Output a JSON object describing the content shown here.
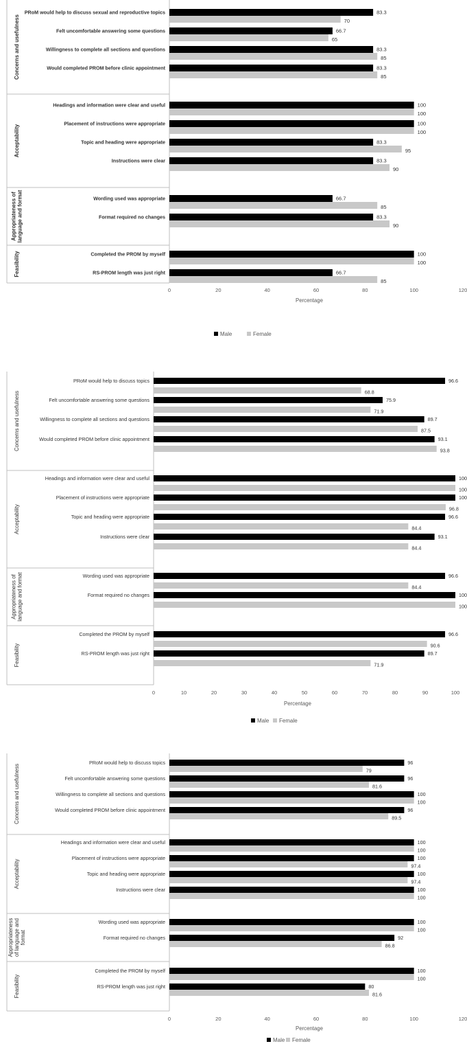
{
  "legend": {
    "male": "Male",
    "female": "Female"
  },
  "colors": {
    "male": "#000000",
    "female": "#c8c8c8",
    "axis": "#bfbfbf",
    "text": "#333333"
  },
  "chart_data": [
    {
      "type": "bar",
      "orientation": "horizontal",
      "xlabel": "Percentage",
      "xlim": [
        0,
        120
      ],
      "xticks": [
        0,
        20,
        40,
        60,
        80,
        100,
        120
      ],
      "xtick_labels": [
        "0",
        "20",
        "40",
        "60",
        "80",
        "100",
        "120"
      ],
      "legend_position": "bottom",
      "groups": [
        {
          "name": "Concerns and usefulness",
          "items": [
            {
              "label": "PRoM would help to discuss sexual and reproductive topics",
              "male": 83.3,
              "female": 70,
              "male_label": "83.3",
              "female_label": "70"
            },
            {
              "label": "Felt uncomfortable answering some questions",
              "male": 66.7,
              "female": 65,
              "male_label": "66.7",
              "female_label": "65"
            },
            {
              "label": "Willingness to complete all sections and questions",
              "male": 83.3,
              "female": 85,
              "male_label": "83.3",
              "female_label": "85"
            },
            {
              "label": "Would completed PROM before clinic appointment",
              "male": 83.3,
              "female": 85,
              "male_label": "83.3",
              "female_label": "85"
            }
          ]
        },
        {
          "name": "Acceptability",
          "items": [
            {
              "label": "Headings and information were clear and useful",
              "male": 100,
              "female": 100,
              "male_label": "100",
              "female_label": "100"
            },
            {
              "label": "Placement of instructions were appropriate",
              "male": 100,
              "female": 100,
              "male_label": "100",
              "female_label": "100"
            },
            {
              "label": "Topic and heading were appropriate",
              "male": 83.3,
              "female": 95,
              "male_label": "83.3",
              "female_label": "95"
            },
            {
              "label": "Instructions were clear",
              "male": 83.3,
              "female": 90,
              "male_label": "83.3",
              "female_label": "90"
            }
          ]
        },
        {
          "name": "Appropriateness of language and format",
          "items": [
            {
              "label": "Wording used was appropriate",
              "male": 66.7,
              "female": 85,
              "male_label": "66.7",
              "female_label": "85"
            },
            {
              "label": "Format required no changes",
              "male": 83.3,
              "female": 90,
              "male_label": "83.3",
              "female_label": "90"
            }
          ]
        },
        {
          "name": "Feasibility",
          "items": [
            {
              "label": "Completed the PROM by myself",
              "male": 100,
              "female": 100,
              "male_label": "100",
              "female_label": "100"
            },
            {
              "label": "RS-PROM length was just right",
              "male": 66.7,
              "female": 85,
              "male_label": "66.7",
              "female_label": "85"
            }
          ]
        }
      ]
    },
    {
      "type": "bar",
      "orientation": "horizontal",
      "xlabel": "Percentage",
      "xlim": [
        0,
        100
      ],
      "xticks": [
        0,
        10,
        20,
        30,
        40,
        50,
        60,
        70,
        80,
        90,
        100
      ],
      "xtick_labels": [
        "0",
        "10",
        "20",
        "30",
        "40",
        "50",
        "60",
        "70",
        "80",
        "90",
        "100"
      ],
      "legend_position": "bottom",
      "groups": [
        {
          "name": "Concerns and usefulness",
          "items": [
            {
              "label": "PRoM would help to discuss  topics",
              "male": 96.6,
              "female": 68.8,
              "male_label": "96.6",
              "female_label": "68.8"
            },
            {
              "label": "Felt uncomfortable answering some questions",
              "male": 75.9,
              "female": 71.9,
              "male_label": "75.9",
              "female_label": "71.9"
            },
            {
              "label": "Willingness to complete all sections and questions",
              "male": 89.7,
              "female": 87.5,
              "male_label": "89.7",
              "female_label": "87.5"
            },
            {
              "label": "Would completed PROM before clinic appointment",
              "male": 93.1,
              "female": 93.8,
              "male_label": "93.1",
              "female_label": "93.8"
            }
          ]
        },
        {
          "name": "Acceptability",
          "items": [
            {
              "label": "Headings and information were clear and useful",
              "male": 100,
              "female": 100,
              "male_label": "100",
              "female_label": "100"
            },
            {
              "label": "Placement of instructions were appropriate",
              "male": 100,
              "female": 96.8,
              "male_label": "100",
              "female_label": "96.8"
            },
            {
              "label": "Topic and heading were appropriate",
              "male": 96.6,
              "female": 84.4,
              "male_label": "96.6",
              "female_label": "84.4"
            },
            {
              "label": "Instructions were clear",
              "male": 93.1,
              "female": 84.4,
              "male_label": "93.1",
              "female_label": "84.4"
            }
          ]
        },
        {
          "name": "Appropriateness of language and format",
          "items": [
            {
              "label": "Wording used was appropriate",
              "male": 96.6,
              "female": 84.4,
              "male_label": "96.6",
              "female_label": "84.4"
            },
            {
              "label": "Format required no changes",
              "male": 100,
              "female": 100,
              "male_label": "100",
              "female_label": "100"
            }
          ]
        },
        {
          "name": "Feasibility",
          "items": [
            {
              "label": "Completed the PROM by myself",
              "male": 96.6,
              "female": 90.6,
              "male_label": "96.6",
              "female_label": "90.6"
            },
            {
              "label": "RS-PROM length was just right",
              "male": 89.7,
              "female": 71.9,
              "male_label": "89.7",
              "female_label": "71.9"
            }
          ]
        }
      ]
    },
    {
      "type": "bar",
      "orientation": "horizontal",
      "xlabel": "Percentage",
      "xlim": [
        0,
        120
      ],
      "xticks": [
        0,
        20,
        40,
        60,
        80,
        100,
        120
      ],
      "xtick_labels": [
        "0",
        "20",
        "40",
        "60",
        "80",
        "100",
        "120"
      ],
      "legend_position": "bottom",
      "groups": [
        {
          "name": "Concerns and usefulness",
          "items": [
            {
              "label": "PRoM would help to discuss  topics",
              "male": 96,
              "female": 79,
              "male_label": "96",
              "female_label": "79"
            },
            {
              "label": "Felt uncomfortable answering some questions",
              "male": 96,
              "female": 81.6,
              "male_label": "96",
              "female_label": "81.6"
            },
            {
              "label": "Willingness to complete all sections and questions",
              "male": 100,
              "female": 100,
              "male_label": "100",
              "female_label": "100"
            },
            {
              "label": "Would completed PROM before clinic appointment",
              "male": 96,
              "female": 89.5,
              "male_label": "96",
              "female_label": "89.5"
            }
          ]
        },
        {
          "name": "Acceptability",
          "items": [
            {
              "label": "Headings and information were clear and useful",
              "male": 100,
              "female": 100,
              "male_label": "100",
              "female_label": "100"
            },
            {
              "label": "Placement of instructions were appropriate",
              "male": 100,
              "female": 97.4,
              "male_label": "100",
              "female_label": "97.4"
            },
            {
              "label": "Topic and heading were appropriate",
              "male": 100,
              "female": 97.4,
              "male_label": "100",
              "female_label": "97.4"
            },
            {
              "label": "Instructions were clear",
              "male": 100,
              "female": 100,
              "male_label": "100",
              "female_label": "100"
            }
          ]
        },
        {
          "name": "Appropriateness of language and format",
          "items": [
            {
              "label": "Wording used was appropriate",
              "male": 100,
              "female": 100,
              "male_label": "100",
              "female_label": "100"
            },
            {
              "label": "Format required no changes",
              "male": 92,
              "female": 86.8,
              "male_label": "92",
              "female_label": "86.8"
            }
          ]
        },
        {
          "name": "Feasibility",
          "items": [
            {
              "label": "Completed the PROM by myself",
              "male": 100,
              "female": 100,
              "male_label": "100",
              "female_label": "100"
            },
            {
              "label": "RS-PROM length was just right",
              "male": 80,
              "female": 81.6,
              "male_label": "80",
              "female_label": "81.6"
            }
          ]
        }
      ]
    }
  ]
}
